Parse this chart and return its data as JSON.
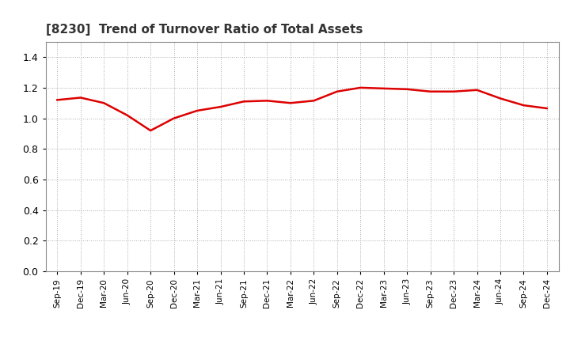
{
  "title": "[8230]  Trend of Turnover Ratio of Total Assets",
  "title_fontsize": 11,
  "title_fontweight": "bold",
  "line_color": "#dd0000",
  "line_width": 1.8,
  "background_color": "#ffffff",
  "grid_color": "#aaaaaa",
  "ylim": [
    0.0,
    1.5
  ],
  "yticks": [
    0.0,
    0.2,
    0.4,
    0.6,
    0.8,
    1.0,
    1.2,
    1.4
  ],
  "x_labels": [
    "Sep-19",
    "Dec-19",
    "Mar-20",
    "Jun-20",
    "Sep-20",
    "Dec-20",
    "Mar-21",
    "Jun-21",
    "Sep-21",
    "Dec-21",
    "Mar-22",
    "Jun-22",
    "Sep-22",
    "Dec-22",
    "Mar-23",
    "Jun-23",
    "Sep-23",
    "Dec-23",
    "Mar-24",
    "Jun-24",
    "Sep-24",
    "Dec-24"
  ],
  "values": [
    1.12,
    1.135,
    1.1,
    1.02,
    0.92,
    1.0,
    1.05,
    1.075,
    1.11,
    1.115,
    1.1,
    1.115,
    1.175,
    1.2,
    1.195,
    1.19,
    1.175,
    1.175,
    1.185,
    1.13,
    1.085,
    1.065
  ]
}
